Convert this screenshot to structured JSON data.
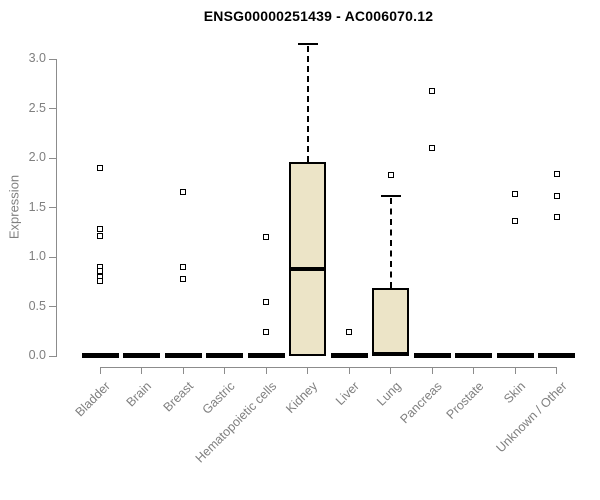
{
  "chart_data": {
    "type": "boxplot",
    "title": "ENSG00000251439 - AC006070.12",
    "ylabel": "Expression",
    "xlabel": "",
    "ylim": [
      0.0,
      3.15
    ],
    "yticks": [
      0.0,
      0.5,
      1.0,
      1.5,
      2.0,
      2.5,
      3.0
    ],
    "grid": false,
    "legend": "none",
    "colors": {
      "box_fill": "#ece4c7",
      "box_border": "#000000",
      "median": "#000000",
      "axis": "#8c8c8c",
      "tick_text": "#7f7f7f",
      "title_text": "#000000"
    },
    "categories": [
      {
        "label": "Bladder",
        "box": {
          "low": 0.0,
          "q1": 0.0,
          "median": 0.0,
          "q3": 0.0,
          "high": 0.0
        },
        "outliers": [
          1.9,
          1.28,
          1.21,
          0.9,
          0.86,
          0.8,
          0.76
        ]
      },
      {
        "label": "Brain",
        "box": {
          "low": 0.0,
          "q1": 0.0,
          "median": 0.0,
          "q3": 0.0,
          "high": 0.0
        },
        "outliers": []
      },
      {
        "label": "Breast",
        "box": {
          "low": 0.0,
          "q1": 0.0,
          "median": 0.0,
          "q3": 0.0,
          "high": 0.0
        },
        "outliers": [
          1.66,
          0.9,
          0.78
        ]
      },
      {
        "label": "Gastric",
        "box": {
          "low": 0.0,
          "q1": 0.0,
          "median": 0.0,
          "q3": 0.0,
          "high": 0.0
        },
        "outliers": []
      },
      {
        "label": "Hematopoietic cells",
        "box": {
          "low": 0.0,
          "q1": 0.0,
          "median": 0.0,
          "q3": 0.0,
          "high": 0.0
        },
        "outliers": [
          1.2,
          0.55,
          0.24
        ]
      },
      {
        "label": "Kidney",
        "box": {
          "low": 0.0,
          "q1": 0.0,
          "median": 0.88,
          "q3": 1.96,
          "high": 3.15
        },
        "outliers": []
      },
      {
        "label": "Liver",
        "box": {
          "low": 0.0,
          "q1": 0.0,
          "median": 0.0,
          "q3": 0.0,
          "high": 0.0
        },
        "outliers": [
          0.24
        ]
      },
      {
        "label": "Lung",
        "box": {
          "low": 0.0,
          "q1": 0.0,
          "median": 0.02,
          "q3": 0.69,
          "high": 1.62
        },
        "outliers": [
          1.83
        ]
      },
      {
        "label": "Pancreas",
        "box": {
          "low": 0.0,
          "q1": 0.0,
          "median": 0.0,
          "q3": 0.0,
          "high": 0.0
        },
        "outliers": [
          2.68,
          2.1
        ]
      },
      {
        "label": "Prostate",
        "box": {
          "low": 0.0,
          "q1": 0.0,
          "median": 0.0,
          "q3": 0.0,
          "high": 0.0
        },
        "outliers": []
      },
      {
        "label": "Skin",
        "box": {
          "low": 0.0,
          "q1": 0.0,
          "median": 0.0,
          "q3": 0.0,
          "high": 0.0
        },
        "outliers": [
          1.64,
          1.36
        ]
      },
      {
        "label": "Unknown / Other",
        "box": {
          "low": 0.0,
          "q1": 0.0,
          "median": 0.0,
          "q3": 0.0,
          "high": 0.0
        },
        "outliers": [
          1.84,
          1.62,
          1.4
        ]
      }
    ]
  }
}
